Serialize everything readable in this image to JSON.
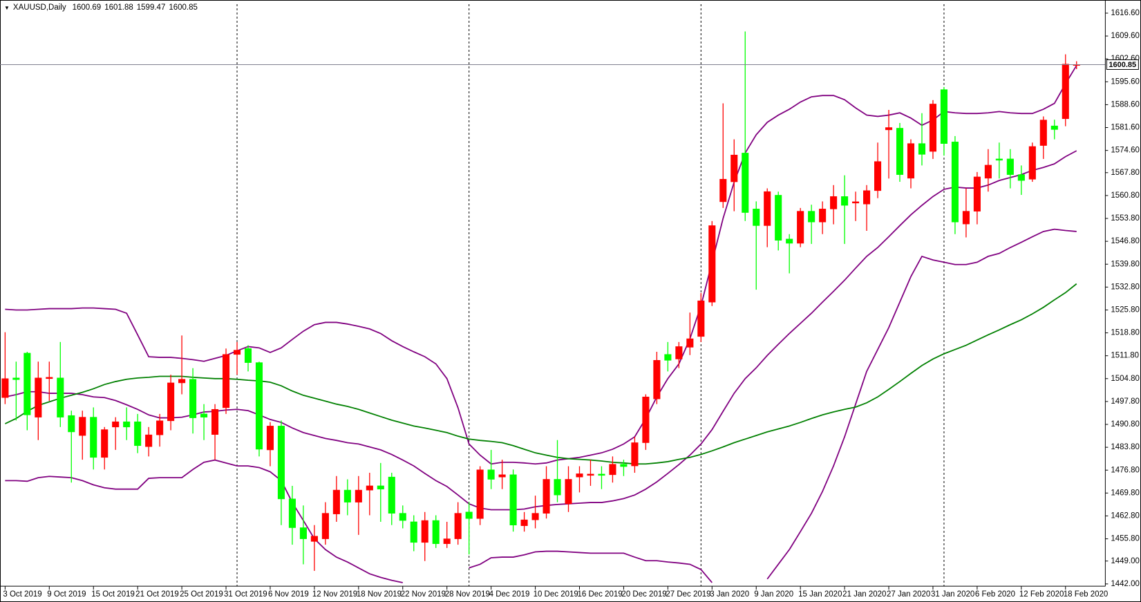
{
  "chart_data": {
    "type": "candlestick",
    "symbol": "XAUUSD,Daily",
    "categories": [
      "3 Oct 2019",
      null,
      null,
      null,
      "9 Oct 2019",
      null,
      null,
      null,
      "15 Oct 2019",
      null,
      null,
      null,
      "21 Oct 2019",
      null,
      null,
      null,
      "25 Oct 2019",
      null,
      null,
      null,
      "31 Oct 2019",
      null,
      null,
      null,
      "6 Nov 2019",
      null,
      null,
      null,
      "12 Nov 2019",
      null,
      null,
      null,
      "18 Nov 2019",
      null,
      null,
      null,
      "22 Nov 2019",
      null,
      null,
      null,
      "28 Nov 2019",
      null,
      null,
      null,
      "4 Dec 2019",
      null,
      null,
      null,
      "10 Dec 2019",
      null,
      null,
      null,
      "16 Dec 2019",
      null,
      null,
      null,
      "20 Dec 2019",
      null,
      null,
      null,
      "27 Dec 2019",
      null,
      null,
      null,
      "3 Jan 2020",
      null,
      null,
      null,
      "9 Jan 2020",
      null,
      null,
      null,
      "15 Jan 2020",
      null,
      null,
      null,
      "21 Jan 2020",
      null,
      null,
      null,
      "27 Jan 2020",
      null,
      null,
      null,
      "31 Jan 2020",
      null,
      null,
      null,
      "6 Feb 2020",
      null,
      null,
      null,
      "12 Feb 2020",
      null,
      null,
      null,
      "18 Feb 2020",
      null
    ],
    "open": [
      1499,
      1505,
      1512.6,
      1493,
      1504.8,
      1505,
      1493.5,
      1487.4,
      1493,
      1480.7,
      1490,
      1491.6,
      1491.6,
      1484,
      1487.6,
      1491.9,
      1503.5,
      1504.6,
      1494,
      1487.7,
      1495.9,
      1512.2,
      1514,
      1509.7,
      1483,
      1490.3,
      1468,
      1459.2,
      1455,
      1455.8,
      1463.4,
      1470.7,
      1467,
      1470.7,
      1472,
      1474.7,
      1463.6,
      1461,
      1454.7,
      1461.4,
      1454.3,
      1455.8,
      1464,
      1462,
      1476.9,
      1474.7,
      1475.4,
      1459.8,
      1461.6,
      1463.6,
      1474,
      1466.5,
      1474.7,
      1475.2,
      1475.6,
      1475.4,
      1478.6,
      1478.1,
      1485.2,
      1498.6,
      1512.2,
      1510.8,
      1514.4,
      1517.7,
      1528.2,
      1558.9,
      1565,
      1573.8,
      1556.7,
      1551.6,
      1560.9,
      1547.5,
      1546.2,
      1556,
      1552.7,
      1556.7,
      1560.5,
      1558.5,
      1558.2,
      1562.3,
      1580.9,
      1581.4,
      1566.1,
      1576.7,
      1574.3,
      1593.2,
      1577.2,
      1552.1,
      1556,
      1566.1,
      1572,
      1572,
      1567.2,
      1565.8,
      1576.1,
      1582.1,
      1584.3,
      1600.69
    ],
    "high": [
      1519,
      1510,
      1513,
      1510,
      1510,
      1516,
      1495,
      1495,
      1496,
      1490,
      1493,
      1496,
      1494,
      1490,
      1494,
      1506,
      1518,
      1508,
      1497,
      1497,
      1514,
      1516,
      1515,
      1510,
      1491.5,
      1492,
      1472,
      1466,
      1460,
      1467,
      1475,
      1474,
      1475,
      1476,
      1479,
      1476,
      1466,
      1463,
      1464,
      1463,
      1461,
      1467,
      1467,
      1478,
      1483,
      1480,
      1477,
      1464,
      1469,
      1478,
      1486,
      1478,
      1478,
      1480,
      1478,
      1481,
      1480,
      1487,
      1500,
      1513,
      1516,
      1516,
      1525,
      1531,
      1553,
      1589,
      1578,
      1611,
      1559,
      1563,
      1562,
      1549,
      1557,
      1558,
      1559,
      1564,
      1567,
      1562,
      1564,
      1577,
      1587,
      1583,
      1578,
      1586,
      1590,
      1594,
      1579,
      1563,
      1568,
      1575,
      1577,
      1575,
      1570,
      1577,
      1585,
      1584,
      1604,
      1601.88
    ],
    "low": [
      1497,
      1492,
      1489,
      1486,
      1498,
      1490,
      1473,
      1480,
      1477,
      1477,
      1483,
      1486,
      1482,
      1481,
      1484,
      1489,
      1500,
      1488,
      1486,
      1480,
      1494,
      1506,
      1507,
      1481,
      1478,
      1460,
      1454,
      1448,
      1446,
      1454,
      1461,
      1463,
      1457,
      1463,
      1461,
      1460,
      1459,
      1452,
      1449,
      1453,
      1453,
      1454,
      1451,
      1460,
      1471,
      1471,
      1458,
      1458,
      1459,
      1462,
      1467,
      1464,
      1470,
      1472,
      1471,
      1473,
      1475,
      1476,
      1483,
      1497,
      1507,
      1508,
      1512,
      1516,
      1527,
      1557,
      1556,
      1553,
      1532,
      1545,
      1544,
      1537,
      1545,
      1546,
      1549,
      1552,
      1546,
      1553,
      1550,
      1560,
      1566,
      1565,
      1563,
      1570,
      1572,
      1573,
      1549,
      1548,
      1552,
      1562,
      1566,
      1563,
      1561,
      1565,
      1572,
      1578,
      1582,
      1599.47
    ],
    "close": [
      1504.8,
      1504.5,
      1493.7,
      1505,
      1505.2,
      1493,
      1488.5,
      1493,
      1480.7,
      1489.2,
      1491.6,
      1490,
      1484.3,
      1487.6,
      1491.9,
      1503.5,
      1504.6,
      1492.8,
      1493,
      1495.4,
      1512.2,
      1513.5,
      1509.7,
      1483.2,
      1490.3,
      1468,
      1459.2,
      1455.8,
      1456.6,
      1463.6,
      1470.7,
      1467,
      1470.7,
      1472,
      1471,
      1463.6,
      1461.4,
      1454.7,
      1461.4,
      1454.3,
      1455.8,
      1463.6,
      1462,
      1476.9,
      1474,
      1475.4,
      1460,
      1461.6,
      1463.6,
      1474,
      1469.2,
      1474,
      1475.7,
      1475.6,
      1475.2,
      1478.6,
      1477.9,
      1485.2,
      1499.2,
      1510.4,
      1510.4,
      1514.6,
      1517,
      1528.6,
      1551.6,
      1565.8,
      1573.2,
      1555.6,
      1551.6,
      1562,
      1547.1,
      1546.2,
      1556,
      1552.7,
      1556.7,
      1560.5,
      1557.8,
      1558.9,
      1562.3,
      1571.2,
      1581.6,
      1567.2,
      1576.7,
      1573.4,
      1588.8,
      1576.7,
      1552.7,
      1556,
      1566.5,
      1570.1,
      1571.6,
      1567.2,
      1565.4,
      1575.8,
      1583.9,
      1581,
      1601,
      1600.85
    ],
    "up_color": "#ff0000",
    "down_color": "#00ff00",
    "indicators": [
      {
        "color": "#800080",
        "values": [
          1526,
          1525.8,
          1525.8,
          1526,
          1526.2,
          1526.2,
          1526.2,
          1526.4,
          1526.4,
          1526.2,
          1526,
          1524.8,
          1518.2,
          1511.5,
          1511.3,
          1511.3,
          1511,
          1510.6,
          1510.1,
          1511,
          1511.9,
          1513.3,
          1514.6,
          1514.2,
          1512.8,
          1514.2,
          1516.8,
          1519.3,
          1521.3,
          1522,
          1522,
          1521.5,
          1520.8,
          1520,
          1518.6,
          1516.4,
          1514.6,
          1513,
          1511.5,
          1509.3,
          1504.8,
          1495.9,
          1484.8,
          1481.4,
          1478.7,
          1479.2,
          1479.2,
          1479,
          1478.7,
          1479,
          1479.9,
          1480.3,
          1480.7,
          1481.4,
          1482.1,
          1483.2,
          1484.8,
          1487,
          1492.6,
          1499.2,
          1504.8,
          1509.3,
          1517,
          1527.1,
          1540.4,
          1553.8,
          1564.9,
          1573.8,
          1579.4,
          1583.2,
          1585.4,
          1587.2,
          1589.4,
          1591,
          1591.4,
          1591.4,
          1590.1,
          1587.6,
          1585.4,
          1585,
          1585.4,
          1586.1,
          1584.5,
          1582.3,
          1583.9,
          1586.5,
          1586.1,
          1585.9,
          1585.9,
          1586.1,
          1586.5,
          1586.1,
          1585.9,
          1585.9,
          1587.2,
          1589,
          1595,
          1600.6
        ]
      },
      {
        "color": "#800080",
        "values": [
          1499.2,
          1499.9,
          1500.8,
          1500.8,
          1500.3,
          1500.3,
          1500.3,
          1499.9,
          1499.2,
          1499,
          1498.1,
          1496.8,
          1495.4,
          1493.7,
          1492.8,
          1492.8,
          1493,
          1493.7,
          1494.6,
          1494.8,
          1495.2,
          1495.4,
          1495,
          1493.7,
          1492.3,
          1491.4,
          1489.7,
          1488.3,
          1487.4,
          1486.5,
          1485.9,
          1485.2,
          1484.8,
          1483.9,
          1483,
          1481.6,
          1479.9,
          1478.1,
          1475.8,
          1473.6,
          1471.8,
          1469.2,
          1466.5,
          1465.2,
          1464.7,
          1464.7,
          1464.7,
          1464.9,
          1465.6,
          1466,
          1466.3,
          1466.5,
          1466.7,
          1466.9,
          1466.9,
          1467.4,
          1468.1,
          1469.2,
          1471,
          1473.2,
          1475.8,
          1478.5,
          1481.4,
          1484.8,
          1489.2,
          1494.8,
          1500.3,
          1504.8,
          1508.1,
          1511.9,
          1515.3,
          1518.6,
          1521.7,
          1524.8,
          1528.2,
          1531.5,
          1534.9,
          1538.6,
          1542.2,
          1544.9,
          1548.2,
          1551.6,
          1554.9,
          1557.8,
          1560.5,
          1562.7,
          1563.4,
          1563.1,
          1563.1,
          1564,
          1565.4,
          1566.3,
          1567.2,
          1568.5,
          1569.4,
          1570.5,
          1572.7,
          1574.5
        ]
      },
      {
        "color": "#800080",
        "values": [
          1473.6,
          1473.6,
          1473.4,
          1474.5,
          1474.9,
          1474.7,
          1474.5,
          1473.6,
          1472.3,
          1471.4,
          1471,
          1471,
          1471,
          1474.3,
          1474.5,
          1474.5,
          1474.5,
          1477,
          1479.2,
          1479.9,
          1479,
          1478.1,
          1478.1,
          1477.6,
          1476.3,
          1473.6,
          1466.9,
          1461.4,
          1455.8,
          1452.5,
          1450.2,
          1448.7,
          1446.9,
          1445.1,
          1444,
          1443.1,
          1442.4,
          null,
          null,
          null,
          null,
          null,
          1446.9,
          1448,
          1450,
          1450.2,
          1450.2,
          1450.9,
          1451.8,
          1452,
          1452,
          1451.8,
          1451.6,
          1451.4,
          1451.4,
          1451.4,
          1451.4,
          1450.2,
          1449.1,
          1449.1,
          1448.7,
          1448.4,
          1448,
          1446.4,
          1442.4,
          null,
          null,
          null,
          null,
          1443.5,
          1448,
          1452.5,
          1458,
          1463.6,
          1470.3,
          1478.1,
          1487,
          1497,
          1507,
          1513.7,
          1520.4,
          1528.2,
          1536,
          1542.2,
          1541.1,
          1540.4,
          1539.7,
          1539.7,
          1540.4,
          1542.2,
          1543.1,
          1544.9,
          1546.5,
          1548.2,
          1549.8,
          1550.5,
          1550.1,
          1549.8
        ]
      },
      {
        "color": "#008000",
        "values": [
          1491,
          1492.6,
          1494.8,
          1496.6,
          1497.7,
          1498.8,
          1499.7,
          1500.6,
          1501.7,
          1503,
          1503.9,
          1504.6,
          1505,
          1505.2,
          1505.5,
          1505.5,
          1505.5,
          1505.2,
          1505,
          1504.8,
          1504.8,
          1504.6,
          1504.3,
          1504.1,
          1503.7,
          1502.6,
          1501,
          1499.7,
          1498.8,
          1497.9,
          1497,
          1496.3,
          1495.4,
          1494.3,
          1493.2,
          1492.1,
          1491.2,
          1490.3,
          1489.7,
          1489,
          1488.3,
          1487.2,
          1486.3,
          1485.9,
          1485.6,
          1485.2,
          1484.3,
          1483.2,
          1482.1,
          1481.4,
          1480.7,
          1480.3,
          1480.1,
          1479.9,
          1479.6,
          1479.2,
          1479,
          1478.7,
          1478.7,
          1479,
          1479.4,
          1480.1,
          1480.7,
          1481.6,
          1482.7,
          1483.9,
          1485.2,
          1486.3,
          1487.4,
          1488.5,
          1489.4,
          1490.3,
          1491.4,
          1492.6,
          1493.7,
          1494.6,
          1495.4,
          1496.1,
          1497.4,
          1499.2,
          1501.5,
          1503.9,
          1506.4,
          1508.8,
          1510.8,
          1512.4,
          1513.7,
          1515,
          1516.6,
          1518.2,
          1519.7,
          1521.3,
          1522.8,
          1524.6,
          1526.6,
          1528.9,
          1531.1,
          1533.8
        ]
      }
    ],
    "ylim": [
      1441.3,
      1619.5
    ],
    "yticks": [
      {
        "value": 1442,
        "label": "1442.00"
      },
      {
        "value": 1449,
        "label": "1449.00"
      },
      {
        "value": 1455.8,
        "label": "1455.80"
      },
      {
        "value": 1462.8,
        "label": "1462.80"
      },
      {
        "value": 1469.8,
        "label": "1469.80"
      },
      {
        "value": 1476.8,
        "label": "1476.80"
      },
      {
        "value": 1483.8,
        "label": "1483.80"
      },
      {
        "value": 1490.8,
        "label": "1490.80"
      },
      {
        "value": 1497.8,
        "label": "1497.80"
      },
      {
        "value": 1504.8,
        "label": "1504.80"
      },
      {
        "value": 1511.8,
        "label": "1511.80"
      },
      {
        "value": 1518.8,
        "label": "1518.80"
      },
      {
        "value": 1525.8,
        "label": "1525.80"
      },
      {
        "value": 1532.8,
        "label": "1532.80"
      },
      {
        "value": 1539.8,
        "label": "1539.80"
      },
      {
        "value": 1546.8,
        "label": "1546.80"
      },
      {
        "value": 1553.8,
        "label": "1553.80"
      },
      {
        "value": 1560.8,
        "label": "1560.80"
      },
      {
        "value": 1567.8,
        "label": "1567.80"
      },
      {
        "value": 1574.6,
        "label": "1574.60"
      },
      {
        "value": 1581.6,
        "label": "1581.60"
      },
      {
        "value": 1588.6,
        "label": "1588.60"
      },
      {
        "value": 1595.6,
        "label": "1595.60"
      },
      {
        "value": 1602.6,
        "label": "1602.60"
      },
      {
        "value": 1609.6,
        "label": "1609.60"
      },
      {
        "value": 1616.6,
        "label": "1616.60"
      }
    ],
    "grid": false
  }
}
